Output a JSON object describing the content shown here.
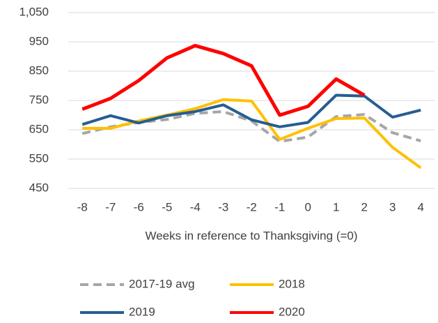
{
  "chart_data": {
    "type": "line",
    "x_label": "Weeks in reference to Thanksgiving (=0)",
    "categories": [
      -8,
      -7,
      -6,
      -5,
      -4,
      -3,
      -2,
      -1,
      0,
      1,
      2,
      3,
      4
    ],
    "series": [
      {
        "name": "2017-19 avg",
        "color": "#a6a6a6",
        "dashed": true,
        "values": [
          637,
          660,
          675,
          685,
          706,
          712,
          680,
          610,
          625,
          695,
          702,
          640,
          612
        ]
      },
      {
        "name": "2018",
        "color": "#ffc000",
        "values": [
          655,
          655,
          680,
          700,
          722,
          753,
          748,
          617,
          655,
          688,
          690,
          590,
          520
        ]
      },
      {
        "name": "2019",
        "color": "#255e91",
        "values": [
          668,
          698,
          673,
          698,
          712,
          735,
          684,
          660,
          675,
          768,
          765,
          693,
          717
        ]
      },
      {
        "name": "2020",
        "color": "#ff0000",
        "values": [
          720,
          757,
          818,
          895,
          937,
          910,
          868,
          700,
          730,
          823,
          768,
          null,
          null
        ]
      }
    ],
    "ylim": [
      450,
      1050
    ],
    "yticks": [
      450,
      550,
      650,
      750,
      850,
      950,
      {
        "value": 1050,
        "label": "1,050"
      }
    ],
    "grid": true
  }
}
